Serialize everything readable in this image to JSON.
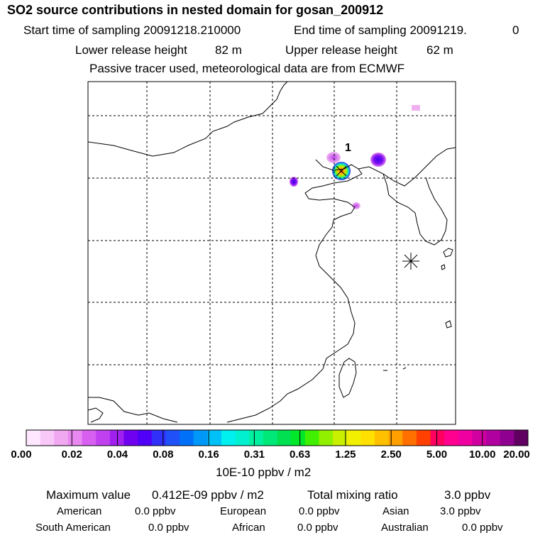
{
  "header": {
    "title": "SO2 source contributions in nested domain for gosan_200912",
    "start_label": "Start time of sampling 20091218.210000",
    "end_label": "End time of sampling 20091219.",
    "end_value": "0",
    "lower_label": "Lower release height",
    "lower_value": "82 m",
    "upper_label": "Upper release height",
    "upper_value": "62 m",
    "note": "Passive tracer used, meteorological data are from ECMWF"
  },
  "map": {
    "source_label": "1",
    "receptor_marker": "receptor-star-icon"
  },
  "colorbar": {
    "colors": [
      "#ffe8ff",
      "#f8c8f8",
      "#f0a8f0",
      "#e888f0",
      "#d860f0",
      "#c040f0",
      "#a020f0",
      "#7000f0",
      "#5000f8",
      "#3030f8",
      "#2050f8",
      "#0070f8",
      "#0098f8",
      "#00c0f8",
      "#00f0f0",
      "#00f0d0",
      "#00f0a0",
      "#00e878",
      "#00e050",
      "#00e828",
      "#40f000",
      "#90f000",
      "#c8f000",
      "#f0f000",
      "#ffe000",
      "#ffc000",
      "#ffa000",
      "#ff7000",
      "#ff4000",
      "#ff0060",
      "#ff0090",
      "#f000a0",
      "#d000a0",
      "#b000a0",
      "#900090",
      "#600060"
    ],
    "labels": [
      "0.00",
      "0.02",
      "0.04",
      "0.08",
      "0.16",
      "0.31",
      "0.63",
      "1.25",
      "2.50",
      "5.00",
      "10.00",
      "20.00"
    ],
    "unit": "10E-10 ppbv / m2"
  },
  "stats": {
    "max_label": "Maximum value",
    "max_value": "0.412E-09 ppbv / m2",
    "total_label": "Total mixing ratio",
    "total_value": "3.0 ppbv",
    "regions": [
      {
        "name": "American",
        "value": "0.0 ppbv"
      },
      {
        "name": "European",
        "value": "0.0 ppbv"
      },
      {
        "name": "Asian",
        "value": "3.0 ppbv"
      },
      {
        "name": "South American",
        "value": "0.0 ppbv"
      },
      {
        "name": "African",
        "value": "0.0 ppbv"
      },
      {
        "name": "Australian",
        "value": "0.0 ppbv"
      }
    ]
  }
}
